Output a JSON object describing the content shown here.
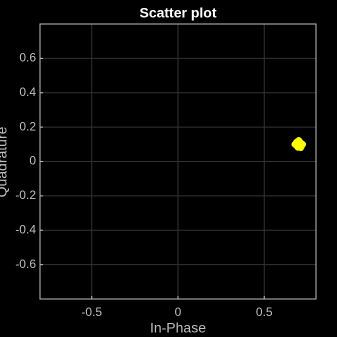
{
  "chart_data": {
    "type": "scatter",
    "title": "Scatter plot",
    "x_label": "In-Phase",
    "y_label": "Quadrature",
    "series": [
      {
        "color": "#ffff00",
        "x": [
          0.69,
          0.71,
          0.7,
          0.72,
          0.68,
          0.705,
          0.695,
          0.715,
          0.685,
          0.7,
          0.71,
          0.69,
          0.725,
          0.675,
          0.7,
          0.712,
          0.688,
          0.703,
          0.697,
          0.718,
          0.682,
          0.708,
          0.692,
          0.7
        ],
        "values": [
          0.1,
          0.11,
          0.09,
          0.105,
          0.095,
          0.12,
          0.08,
          0.1,
          0.112,
          0.085,
          0.092,
          0.118,
          0.1,
          0.1,
          0.125,
          0.078,
          0.106,
          0.094,
          0.102,
          0.088,
          0.108,
          0.115,
          0.083,
          0.1
        ]
      }
    ],
    "xlim": [
      -0.8,
      0.8
    ],
    "ylim": [
      -0.8,
      0.8
    ],
    "xticks": [
      -0.5,
      0,
      0.5
    ],
    "yticks": [
      -0.6,
      -0.4,
      -0.2,
      0,
      0.2,
      0.4,
      0.6
    ],
    "grid": true
  }
}
